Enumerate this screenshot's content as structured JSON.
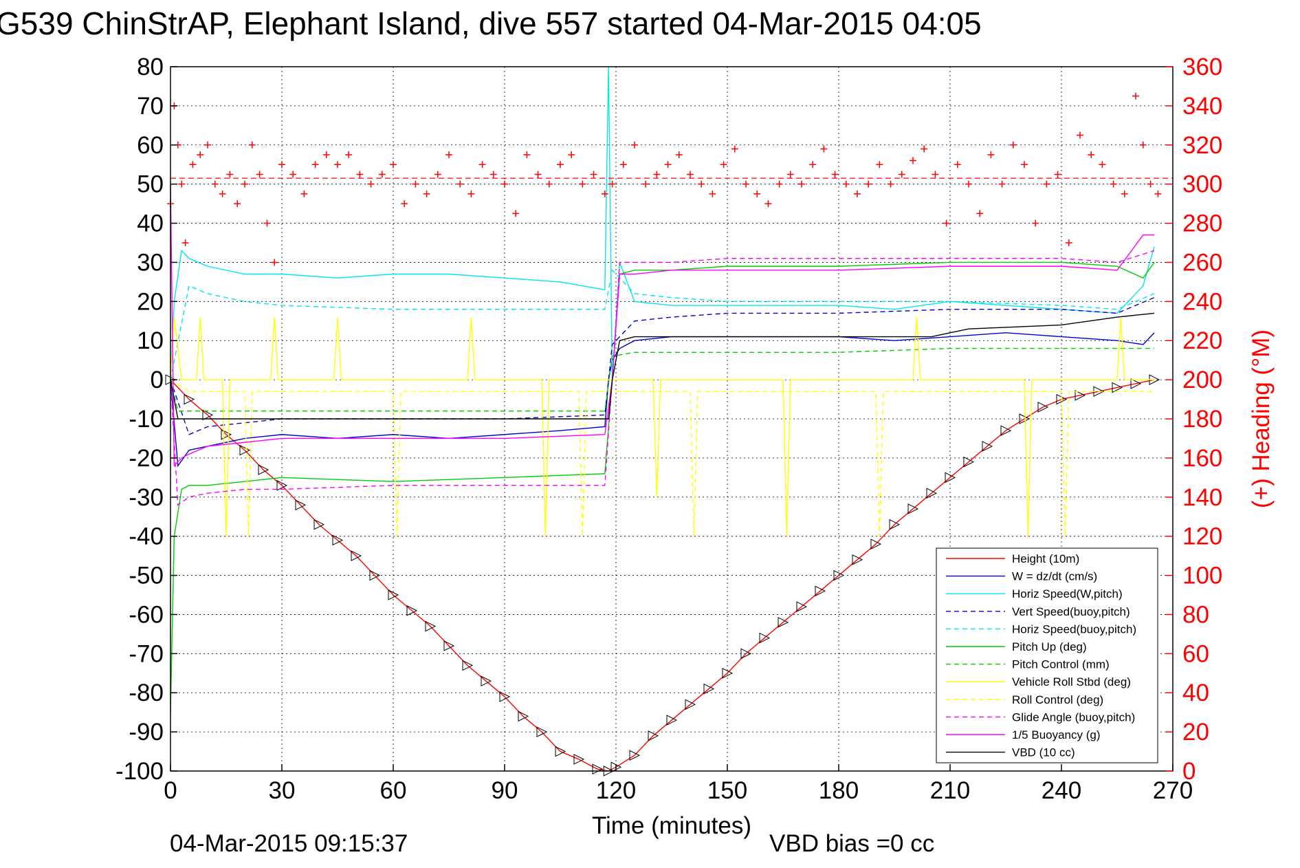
{
  "title": "G539 ChinStrAP, Elephant Island, dive 557 started 04-Mar-2015 04:05",
  "footer": {
    "timestamp": "04-Mar-2015 09:15:37",
    "vbd_bias": "VBD bias =0 cc"
  },
  "colors": {
    "height": "#ff0000",
    "w": "#0000cc",
    "horiz_speed": "#00e5ee",
    "pitch": "#00cc00",
    "roll": "#ffff00",
    "glide": "#ff00ff",
    "vbd": "#000000",
    "heading": "#ff0000"
  },
  "chart_data": {
    "type": "line",
    "title": "G539 ChinStrAP, Elephant Island, dive 557 started 04-Mar-2015 04:05",
    "xlabel": "Time (minutes)",
    "ylabel": "",
    "y2label": "(+) Heading (°M)",
    "xlim": [
      0,
      270
    ],
    "ylim": [
      -100,
      80
    ],
    "y2lim": [
      0,
      360
    ],
    "xticks": [
      "0",
      "30",
      "60",
      "90",
      "120",
      "150",
      "180",
      "210",
      "240",
      "270"
    ],
    "yticks": [
      "80",
      "70",
      "60",
      "50",
      "40",
      "30",
      "20",
      "10",
      "0",
      "-10",
      "-20",
      "-30",
      "-40",
      "-50",
      "-60",
      "-70",
      "-80",
      "-90",
      "-100"
    ],
    "y2ticks": [
      "360",
      "340",
      "320",
      "300",
      "280",
      "260",
      "240",
      "220",
      "200",
      "180",
      "160",
      "140",
      "120",
      "100",
      "80",
      "60",
      "40",
      "20",
      "0"
    ],
    "grid": true,
    "legend_position": "bottom-right",
    "series": [
      {
        "name": "Height (10m)",
        "color": "#ff0000",
        "style": "solid",
        "markers": "triangles",
        "x": [
          0,
          5,
          10,
          15,
          20,
          25,
          30,
          35,
          40,
          45,
          50,
          55,
          60,
          65,
          70,
          75,
          80,
          85,
          90,
          95,
          100,
          105,
          110,
          115,
          118,
          120,
          125,
          130,
          135,
          140,
          145,
          150,
          155,
          160,
          165,
          170,
          175,
          180,
          185,
          190,
          195,
          200,
          205,
          210,
          215,
          220,
          225,
          230,
          235,
          240,
          245,
          250,
          255,
          260,
          265
        ],
        "y": [
          0,
          -5,
          -9,
          -14,
          -18,
          -23,
          -27,
          -32,
          -37,
          -41,
          -45,
          -50,
          -55,
          -59,
          -63,
          -68,
          -73,
          -77,
          -81,
          -86,
          -90,
          -95,
          -97,
          -99.5,
          -100,
          -99,
          -96,
          -91,
          -87,
          -83,
          -79,
          -75,
          -70,
          -66,
          -62,
          -58,
          -54,
          -50,
          -46,
          -42,
          -37,
          -33,
          -29,
          -25,
          -21,
          -17,
          -13,
          -10,
          -7,
          -5,
          -4,
          -3,
          -2,
          -1,
          0
        ]
      },
      {
        "name": "W = dz/dt (cm/s)",
        "color": "#0000cc",
        "style": "solid",
        "x": [
          0,
          2,
          5,
          10,
          20,
          30,
          45,
          60,
          75,
          90,
          105,
          117,
          118,
          119,
          121,
          125,
          135,
          150,
          165,
          180,
          195,
          210,
          225,
          240,
          255,
          262,
          265
        ],
        "y": [
          0,
          -22,
          -18,
          -17,
          -15,
          -14,
          -15,
          -14,
          -15,
          -14,
          -13,
          -12,
          0,
          5,
          8,
          10,
          11,
          11,
          11,
          11,
          10,
          11,
          12,
          11,
          10,
          9,
          12
        ]
      },
      {
        "name": "Horiz Speed(W,pitch)",
        "color": "#00e5ee",
        "style": "solid",
        "x": [
          0,
          1,
          3,
          5,
          10,
          20,
          30,
          45,
          60,
          75,
          90,
          105,
          117,
          118,
          119,
          121,
          125,
          135,
          150,
          165,
          180,
          195,
          210,
          225,
          240,
          255,
          262,
          265
        ],
        "y": [
          0,
          20,
          33,
          31,
          29,
          27,
          27,
          26,
          27,
          27,
          26,
          25,
          23,
          80,
          0,
          30,
          20,
          19,
          19,
          19,
          19,
          18,
          20,
          19,
          18,
          17,
          24,
          34
        ]
      },
      {
        "name": "Vert Speed(buoy,pitch)",
        "color": "#0000cc",
        "style": "dashed",
        "x": [
          0,
          5,
          10,
          20,
          30,
          60,
          90,
          117,
          119,
          125,
          135,
          150,
          180,
          210,
          240,
          255,
          265
        ],
        "y": [
          0,
          -14,
          -12,
          -11,
          -10,
          -10,
          -10,
          -9,
          9,
          15,
          16,
          17,
          17,
          18,
          18,
          17,
          21
        ]
      },
      {
        "name": "Horiz Speed(buoy,pitch)",
        "color": "#00e5ee",
        "style": "dashed",
        "x": [
          0,
          5,
          10,
          20,
          30,
          60,
          90,
          117,
          119,
          125,
          135,
          150,
          180,
          210,
          240,
          255,
          265
        ],
        "y": [
          0,
          24,
          22,
          20,
          19,
          18,
          18,
          18,
          28,
          22,
          21,
          20,
          20,
          20,
          19,
          18,
          22
        ]
      },
      {
        "name": "Pitch Up (deg)",
        "color": "#00cc00",
        "style": "solid",
        "x": [
          0,
          1,
          3,
          5,
          10,
          20,
          30,
          60,
          90,
          117,
          119,
          121,
          125,
          135,
          150,
          180,
          210,
          240,
          255,
          262,
          265
        ],
        "y": [
          -85,
          -40,
          -28,
          -27,
          -27,
          -26,
          -25,
          -26,
          -25,
          -24,
          0,
          27,
          28,
          28,
          29,
          29,
          30,
          30,
          29,
          26,
          30
        ]
      },
      {
        "name": "Pitch Control (mm)",
        "color": "#00cc00",
        "style": "dashed",
        "x": [
          0,
          2,
          30,
          60,
          90,
          117,
          119,
          125,
          150,
          180,
          210,
          240,
          265
        ],
        "y": [
          0,
          -8,
          -8,
          -8,
          -8,
          -8,
          6,
          7,
          7,
          7,
          8,
          8,
          8
        ]
      },
      {
        "name": "Vehicle Roll Stbd (deg)",
        "color": "#ffff00",
        "style": "solid",
        "x": [
          0,
          1,
          3,
          7,
          8,
          9,
          14,
          15,
          16,
          27,
          28,
          29,
          44,
          45,
          46,
          80,
          81,
          82,
          100,
          101,
          102,
          130,
          131,
          132,
          165,
          166,
          167,
          200,
          201,
          202,
          230,
          231,
          232,
          255,
          256,
          257,
          265
        ],
        "y": [
          0,
          16,
          0,
          0,
          16,
          0,
          0,
          -40,
          0,
          0,
          16,
          0,
          0,
          16,
          0,
          0,
          16,
          0,
          0,
          -40,
          0,
          0,
          -30,
          0,
          0,
          -40,
          0,
          0,
          16,
          0,
          0,
          -40,
          0,
          0,
          16,
          0,
          0
        ]
      },
      {
        "name": "Roll Control (deg)",
        "color": "#ffff00",
        "style": "dashed",
        "x": [
          0,
          5,
          20,
          21,
          22,
          60,
          61,
          62,
          110,
          111,
          112,
          140,
          141,
          142,
          190,
          191,
          192,
          240,
          241,
          242,
          265
        ],
        "y": [
          0,
          -3,
          -3,
          -40,
          -3,
          -3,
          -40,
          -3,
          -3,
          -40,
          -3,
          -3,
          -40,
          -3,
          -3,
          -40,
          -3,
          -3,
          -40,
          -3,
          -3
        ]
      },
      {
        "name": "Glide Angle (buoy,pitch)",
        "color": "#ff00ff",
        "style": "dashed",
        "x": [
          0,
          2,
          5,
          10,
          20,
          30,
          60,
          90,
          117,
          119,
          121,
          125,
          135,
          150,
          180,
          210,
          240,
          255,
          265
        ],
        "y": [
          0,
          -32,
          -30,
          -29,
          -28,
          -28,
          -27,
          -27,
          -27,
          0,
          30,
          30,
          30,
          31,
          31,
          31,
          31,
          30,
          33
        ]
      },
      {
        "name": "1/5 Buoyancy (g)",
        "color": "#ff00ff",
        "style": "solid",
        "x": [
          0,
          1,
          3,
          5,
          10,
          20,
          30,
          60,
          90,
          117,
          119,
          121,
          125,
          135,
          150,
          180,
          210,
          240,
          255,
          262,
          265
        ],
        "y": [
          50,
          -22,
          -20,
          -19,
          -17,
          -16,
          -15,
          -15,
          -15,
          -14,
          0,
          27,
          27,
          28,
          28,
          28,
          29,
          29,
          28,
          37,
          37
        ]
      },
      {
        "name": "VBD (10 cc)",
        "color": "#000000",
        "style": "solid",
        "x": [
          0,
          1,
          2,
          30,
          60,
          90,
          117,
          118,
          119,
          121,
          125,
          135,
          150,
          180,
          205,
          210,
          215,
          240,
          255,
          265
        ],
        "y": [
          0,
          -5,
          -10,
          -10,
          -10,
          -10,
          -10,
          -10,
          0,
          10,
          11,
          11,
          11,
          11,
          11,
          12,
          13,
          14,
          16,
          17
        ]
      },
      {
        "name": "Heading",
        "color": "#ff0000",
        "style": "markers",
        "axis": "right",
        "reference_line": 303,
        "x": [
          0,
          1,
          2,
          3,
          4,
          6,
          8,
          10,
          12,
          14,
          16,
          18,
          20,
          22,
          24,
          26,
          28,
          30,
          33,
          36,
          39,
          42,
          45,
          48,
          51,
          54,
          57,
          60,
          63,
          66,
          69,
          72,
          75,
          78,
          81,
          84,
          87,
          90,
          93,
          96,
          99,
          102,
          105,
          108,
          111,
          114,
          117,
          119,
          122,
          125,
          128,
          131,
          134,
          137,
          140,
          143,
          146,
          149,
          152,
          155,
          158,
          161,
          164,
          167,
          170,
          173,
          176,
          179,
          182,
          185,
          188,
          191,
          194,
          197,
          200,
          203,
          206,
          209,
          212,
          215,
          218,
          221,
          224,
          227,
          230,
          233,
          236,
          239,
          242,
          245,
          248,
          251,
          254,
          257,
          260,
          262,
          264,
          266
        ],
        "y": [
          290,
          340,
          320,
          300,
          270,
          310,
          315,
          320,
          300,
          295,
          305,
          290,
          300,
          320,
          305,
          280,
          260,
          310,
          305,
          295,
          310,
          315,
          310,
          315,
          305,
          300,
          305,
          310,
          290,
          300,
          295,
          305,
          315,
          300,
          295,
          310,
          305,
          300,
          285,
          315,
          305,
          300,
          310,
          315,
          300,
          305,
          295,
          300,
          310,
          320,
          300,
          305,
          310,
          315,
          305,
          300,
          295,
          310,
          318,
          300,
          295,
          290,
          300,
          305,
          300,
          310,
          318,
          305,
          300,
          295,
          300,
          310,
          300,
          305,
          312,
          318,
          305,
          280,
          310,
          300,
          285,
          315,
          300,
          320,
          310,
          280,
          300,
          305,
          270,
          325,
          315,
          310,
          300,
          295,
          345,
          320,
          300,
          295
        ]
      }
    ]
  }
}
